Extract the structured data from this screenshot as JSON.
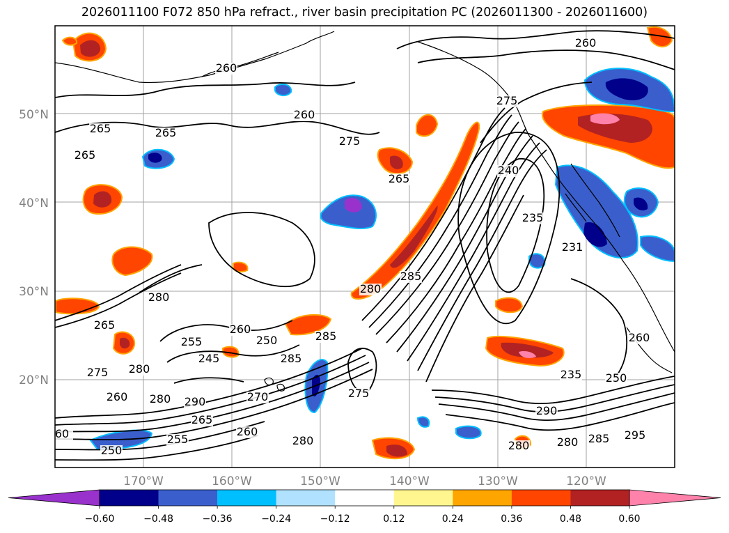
{
  "title": "2026011100 F072 850 hPa refract., river basin precipitation PC (2026011300 - 2026011600)",
  "map": {
    "lat_ticks": [
      "50°N",
      "40°N",
      "30°N",
      "20°N"
    ],
    "lon_ticks": [
      "170°W",
      "160°W",
      "150°W",
      "140°W",
      "130°W",
      "120°W"
    ],
    "grid": true,
    "contour_color": "#000000",
    "gridline_color": "#8c8c8c",
    "contour_labels": [
      "260",
      "260",
      "275",
      "265",
      "265",
      "265",
      "260",
      "275",
      "240",
      "235",
      "231",
      "265",
      "280",
      "285",
      "280",
      "260",
      "250",
      "285",
      "255",
      "245",
      "285",
      "280",
      "270",
      "275",
      "290",
      "265",
      "260",
      "255",
      "250",
      "280",
      "235",
      "250",
      "290",
      "280",
      "295",
      "285",
      "260",
      "280",
      "275",
      "265",
      "60",
      "260",
      "280"
    ]
  },
  "colorbar": {
    "levels": [
      "-0.60",
      "-0.48",
      "-0.36",
      "-0.24",
      "-0.12",
      "0.12",
      "0.24",
      "0.36",
      "0.48",
      "0.60"
    ],
    "colors": [
      "#9932cc",
      "#00008b",
      "#3a5fcd",
      "#00bfff",
      "#b0e2ff",
      "#ffffff",
      "#fff68f",
      "#ffa500",
      "#ff4500",
      "#b22222",
      "#ff82ab"
    ]
  }
}
